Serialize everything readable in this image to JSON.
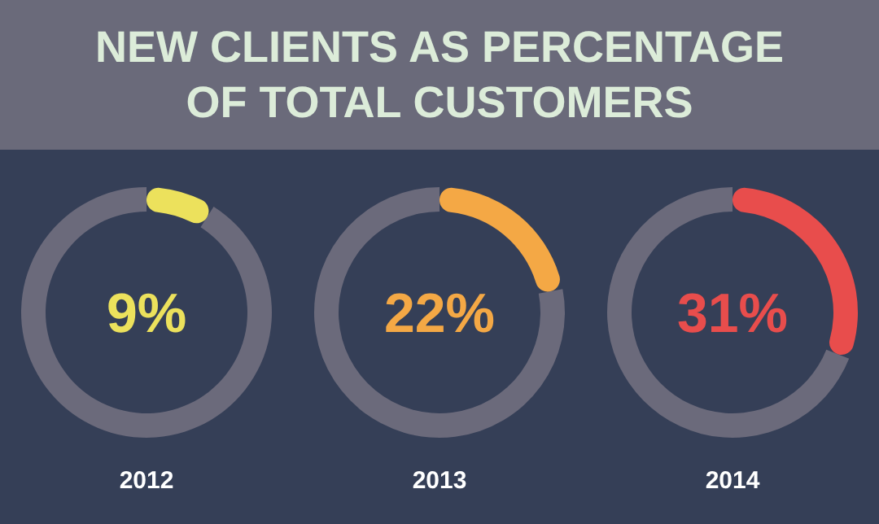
{
  "chart_data": [
    {
      "type": "donut",
      "title": "NEW CLIENTS AS PERCENTAGE\nOF TOTAL CUSTOMERS",
      "xlabel": "2012",
      "categories": [
        null,
        null
      ],
      "values": [
        9,
        91
      ],
      "colors": [
        "#ece15c",
        "#6b6a7b"
      ],
      "annotations": [
        "9%"
      ]
    },
    {
      "type": "donut",
      "xlabel": "2013",
      "categories": [
        null,
        null
      ],
      "values": [
        22,
        78
      ],
      "colors": [
        "#f4a845",
        "#6b6a7b"
      ],
      "annotations": [
        "22%"
      ]
    },
    {
      "type": "donut",
      "xlabel": "2014",
      "categories": [
        null,
        null
      ],
      "values": [
        31,
        69
      ],
      "colors": [
        "#e84d4c",
        "#6b6a7b"
      ],
      "annotations": [
        "31%"
      ]
    }
  ]
}
